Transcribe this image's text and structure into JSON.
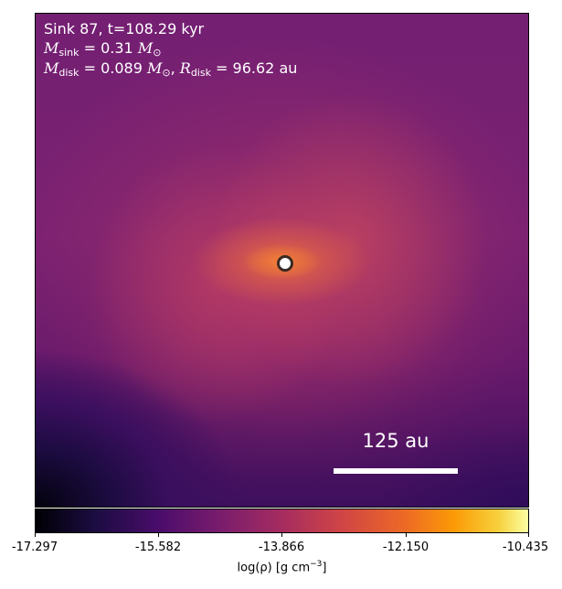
{
  "figure": {
    "title_line": "Sink 87, t=108.29 kyr",
    "sink_mass_label": "M",
    "sink_mass_sub": "sink",
    "sink_mass_value": " = 0.31 ",
    "disk_mass_label": "M",
    "disk_mass_sub": "disk",
    "disk_mass_value": " = 0.089 ",
    "disk_radius_label": "R",
    "disk_radius_sub": "disk",
    "disk_radius_value": " = 96.62 au",
    "solar_symbol": "⊙",
    "scalebar_label": "125 au"
  },
  "colorbar": {
    "ticks": [
      "-17.297",
      "-15.582",
      "-13.866",
      "-12.150",
      "-10.435"
    ],
    "label_prefix": "log(ρ) [g cm",
    "label_exponent": "−3",
    "label_suffix": "]",
    "colormap": "inferno"
  },
  "markers": {
    "sink_icon": "sink-circle-icon"
  }
}
